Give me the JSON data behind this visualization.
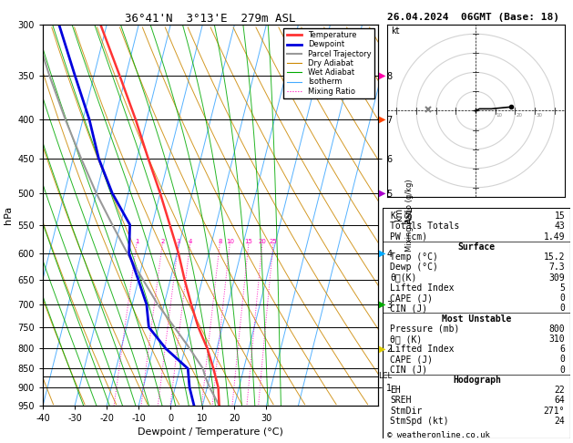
{
  "title_left": "36°41'N  3°13'E  279m ASL",
  "title_right": "26.04.2024  06GMT (Base: 18)",
  "xlabel": "Dewpoint / Temperature (°C)",
  "ylabel_left": "hPa",
  "pressure_levels": [
    300,
    350,
    400,
    450,
    500,
    550,
    600,
    650,
    700,
    750,
    800,
    850,
    900,
    950
  ],
  "temp_range": [
    -40,
    35
  ],
  "lcl_pressure": 870,
  "skew_factor": 30,
  "dry_adiabat_color": "#cc8800",
  "wet_adiabat_color": "#00aa00",
  "isotherm_color": "#44aaff",
  "temp_color": "#ff3333",
  "dewp_color": "#0000dd",
  "parcel_color": "#999999",
  "mixing_ratio_color": "#ff00bb",
  "mixing_ratios": [
    1,
    2,
    3,
    4,
    8,
    10,
    15,
    20,
    25
  ],
  "temp_profile": {
    "pressure": [
      950,
      900,
      850,
      800,
      750,
      700,
      650,
      600,
      550,
      500,
      450,
      400,
      350,
      300
    ],
    "temp": [
      15.2,
      13.5,
      10.5,
      7.0,
      2.5,
      -1.5,
      -5.5,
      -9.5,
      -14.5,
      -20.0,
      -26.5,
      -33.5,
      -42.0,
      -52.0
    ]
  },
  "dewp_profile": {
    "pressure": [
      950,
      900,
      850,
      800,
      750,
      700,
      650,
      600,
      550,
      500,
      450,
      400,
      350,
      300
    ],
    "temp": [
      7.3,
      4.5,
      2.5,
      -6.0,
      -13.0,
      -15.5,
      -20.0,
      -25.0,
      -27.0,
      -35.0,
      -42.0,
      -48.0,
      -56.0,
      -65.0
    ]
  },
  "parcel_profile": {
    "pressure": [
      950,
      900,
      870,
      850,
      800,
      750,
      700,
      650,
      600,
      550,
      500,
      450,
      400,
      350,
      300
    ],
    "temp": [
      15.2,
      10.8,
      8.5,
      7.2,
      1.5,
      -5.0,
      -12.0,
      -18.5,
      -25.5,
      -32.5,
      -40.0,
      -47.5,
      -55.5,
      -64.0,
      -73.0
    ]
  },
  "hodograph_u": [
    0,
    2,
    8,
    18
  ],
  "hodograph_v": [
    0,
    1,
    1,
    2
  ],
  "storm_u": -24.0,
  "storm_v": 0.5,
  "stats": {
    "K": "15",
    "Totals Totals": "43",
    "PW (cm)": "1.49",
    "Surface Temp (C)": "15.2",
    "Surface Dewp (C)": "7.3",
    "Surface ThetaE (K)": "309",
    "Surface Lifted Index": "5",
    "Surface CAPE (J)": "0",
    "Surface CIN (J)": "0",
    "MU Pressure (mb)": "800",
    "MU ThetaE (K)": "310",
    "MU Lifted Index": "6",
    "MU CAPE (J)": "0",
    "MU CIN (J)": "0",
    "EH": "22",
    "SREH": "64",
    "StmDir": "271°",
    "StmSpd (kt)": "24"
  },
  "legend_items": [
    {
      "label": "Temperature",
      "color": "#ff3333",
      "lw": 2.0,
      "ls": "-"
    },
    {
      "label": "Dewpoint",
      "color": "#0000dd",
      "lw": 2.0,
      "ls": "-"
    },
    {
      "label": "Parcel Trajectory",
      "color": "#999999",
      "lw": 1.5,
      "ls": "-"
    },
    {
      "label": "Dry Adiabat",
      "color": "#cc8800",
      "lw": 0.8,
      "ls": "-"
    },
    {
      "label": "Wet Adiabat",
      "color": "#00aa00",
      "lw": 0.8,
      "ls": "-"
    },
    {
      "label": "Isotherm",
      "color": "#44aaff",
      "lw": 0.8,
      "ls": "-"
    },
    {
      "label": "Mixing Ratio",
      "color": "#ff00bb",
      "lw": 0.8,
      "ls": "dotted"
    }
  ],
  "right_arrows": [
    {
      "pressure": 350,
      "color": "#ff00aa",
      "km": 8
    },
    {
      "pressure": 400,
      "color": "#ff4400",
      "km": 7
    },
    {
      "pressure": 500,
      "color": "#aa00cc",
      "km": 6
    },
    {
      "pressure": 600,
      "color": "#00aaff",
      "km": 5
    },
    {
      "pressure": 700,
      "color": "#00aa00",
      "km": 3
    },
    {
      "pressure": 800,
      "color": "#ddcc00",
      "km": 2
    }
  ]
}
